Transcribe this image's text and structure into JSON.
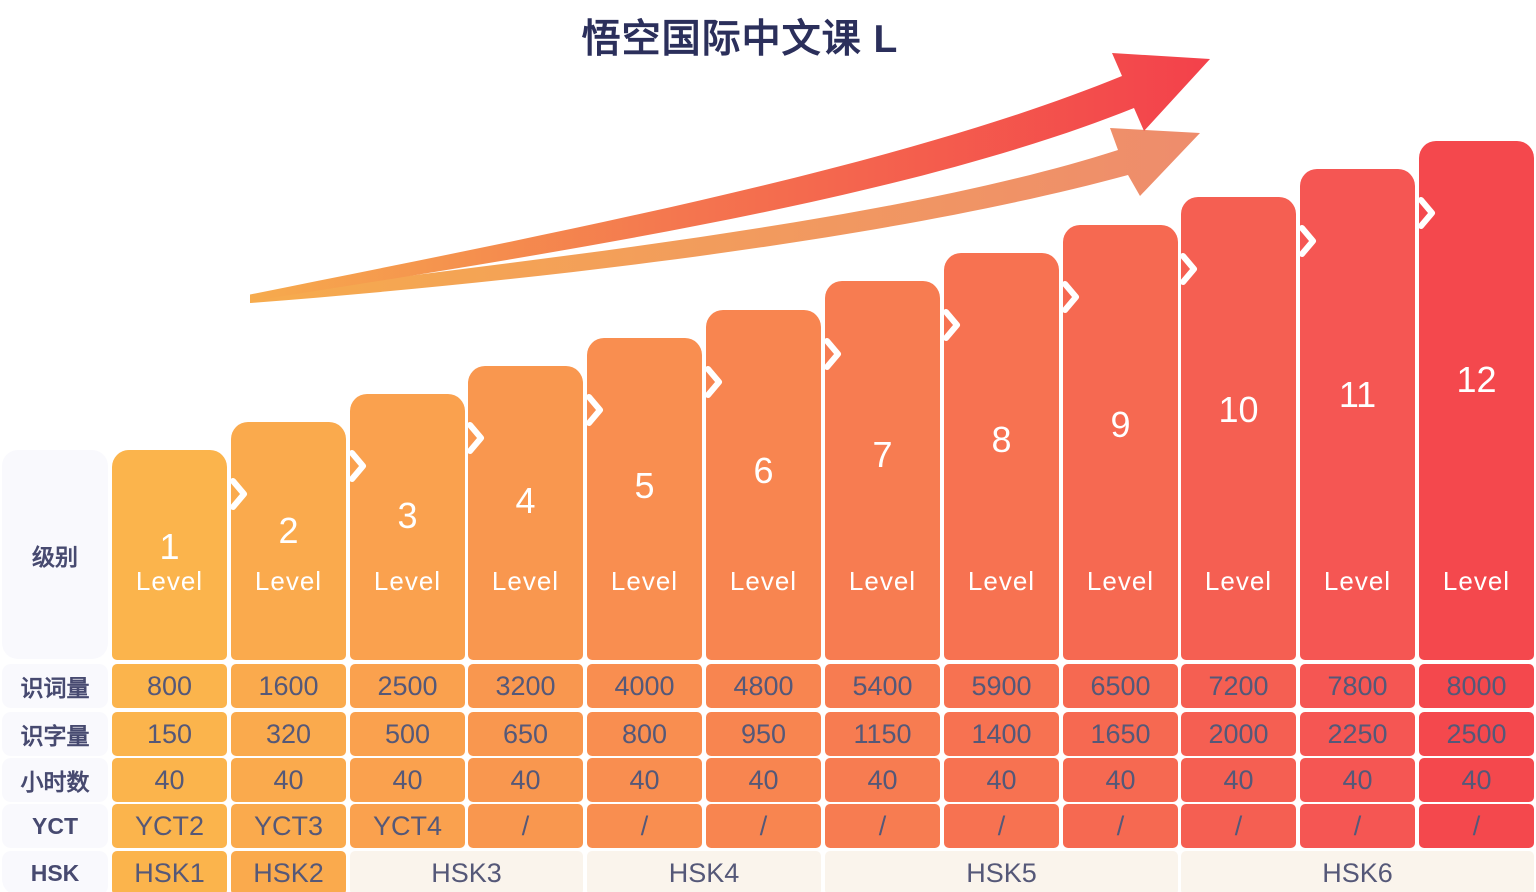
{
  "title": "悟空国际中文课 L",
  "colors": {
    "background": "#FFFFFF",
    "title_text": "#2B2F5B",
    "cell_text": "#555878",
    "header_text": "#474A70",
    "header_bg": "#F9F9FD",
    "hsk_span_bg": "#FAF4EC",
    "level_text": "#FFFFFF",
    "chevron": "#FFFFFF",
    "bars": [
      "#FBB44C",
      "#FAAA4D",
      "#FAA14E",
      "#F9974F",
      "#F98E50",
      "#F88550",
      "#F77C51",
      "#F77251",
      "#F66951",
      "#F55F52",
      "#F55653",
      "#F4484D"
    ],
    "arrow_main_gradient": [
      "#F6AB4D",
      "#F4764F",
      "#F3414B"
    ],
    "arrow_secondary_gradient": [
      "#F6AB4D",
      "#EE8C6D"
    ]
  },
  "chart_data": {
    "type": "bar",
    "title": "悟空国际中文课 L",
    "categories": [
      "1",
      "2",
      "3",
      "4",
      "5",
      "6",
      "7",
      "8",
      "9",
      "10",
      "11",
      "12"
    ],
    "bar_sublabel": "Level",
    "row_header_level": "级别",
    "series": [
      {
        "name": "识词量",
        "values": [
          "800",
          "1600",
          "2500",
          "3200",
          "4000",
          "4800",
          "5400",
          "5900",
          "6500",
          "7200",
          "7800",
          "8000"
        ]
      },
      {
        "name": "识字量",
        "values": [
          "150",
          "320",
          "500",
          "650",
          "800",
          "950",
          "1150",
          "1400",
          "1650",
          "2000",
          "2250",
          "2500"
        ]
      },
      {
        "name": "小时数",
        "values": [
          "40",
          "40",
          "40",
          "40",
          "40",
          "40",
          "40",
          "40",
          "40",
          "40",
          "40",
          "40"
        ]
      },
      {
        "name": "YCT",
        "values": [
          "YCT2",
          "YCT3",
          "YCT4",
          "/",
          "/",
          "/",
          "/",
          "/",
          "/",
          "/",
          "/",
          "/"
        ]
      }
    ],
    "hsk_row": {
      "name": "HSK",
      "spans": [
        {
          "label": "HSK1",
          "start": 1,
          "end": 1
        },
        {
          "label": "HSK2",
          "start": 2,
          "end": 2
        },
        {
          "label": "HSK3",
          "start": 3,
          "end": 4
        },
        {
          "label": "HSK4",
          "start": 5,
          "end": 6
        },
        {
          "label": "HSK5",
          "start": 7,
          "end": 9
        },
        {
          "label": "HSK6",
          "start": 10,
          "end": 12
        }
      ]
    }
  }
}
